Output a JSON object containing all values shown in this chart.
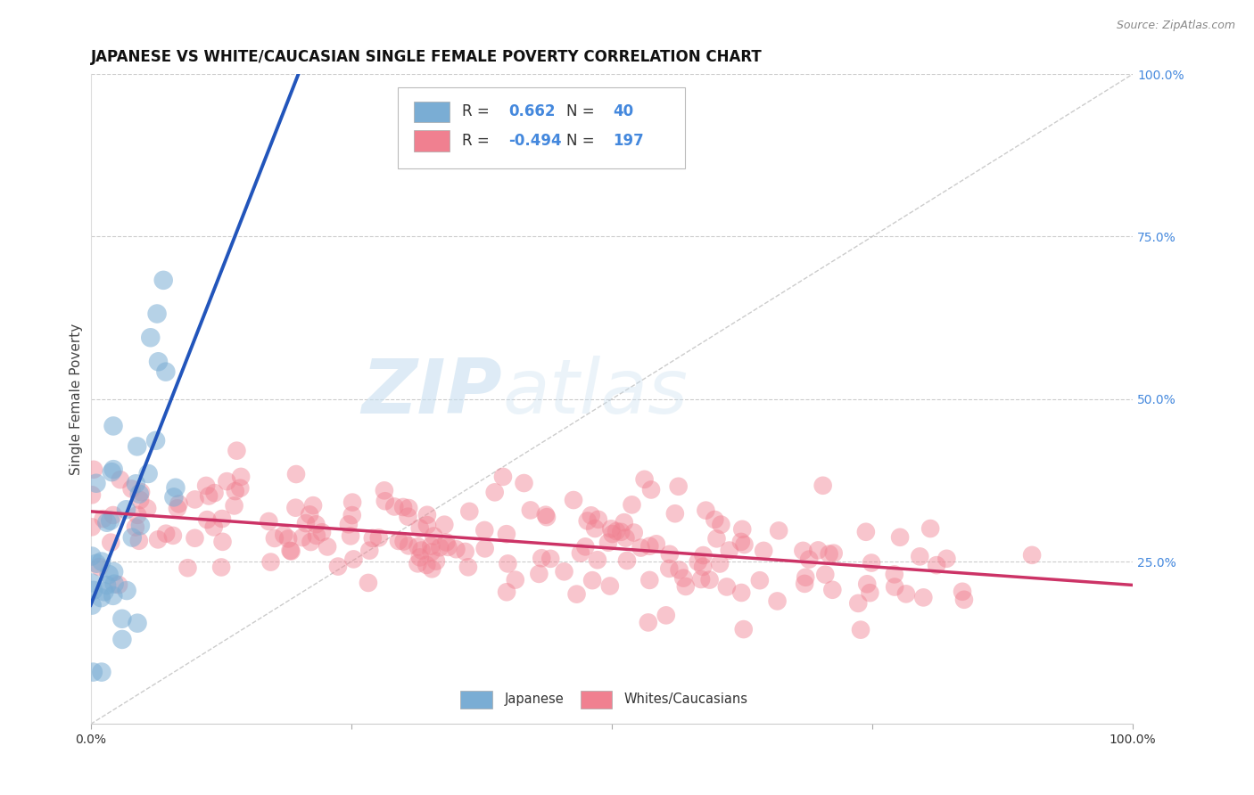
{
  "title": "JAPANESE VS WHITE/CAUCASIAN SINGLE FEMALE POVERTY CORRELATION CHART",
  "source": "Source: ZipAtlas.com",
  "ylabel": "Single Female Poverty",
  "watermark_zip": "ZIP",
  "watermark_atlas": "atlas",
  "r1": 0.662,
  "n1": 40,
  "r2": -0.494,
  "n2": 197,
  "color_japanese": "#7aadd4",
  "color_caucasian": "#f08090",
  "color_trend1": "#2255bb",
  "color_trend2": "#cc3366",
  "color_diagonal": "#bbbbbb",
  "background_color": "#ffffff",
  "grid_color": "#cccccc",
  "title_fontsize": 12,
  "label_fontsize": 11,
  "tick_fontsize": 10,
  "source_fontsize": 9,
  "right_tick_color": "#4488dd"
}
